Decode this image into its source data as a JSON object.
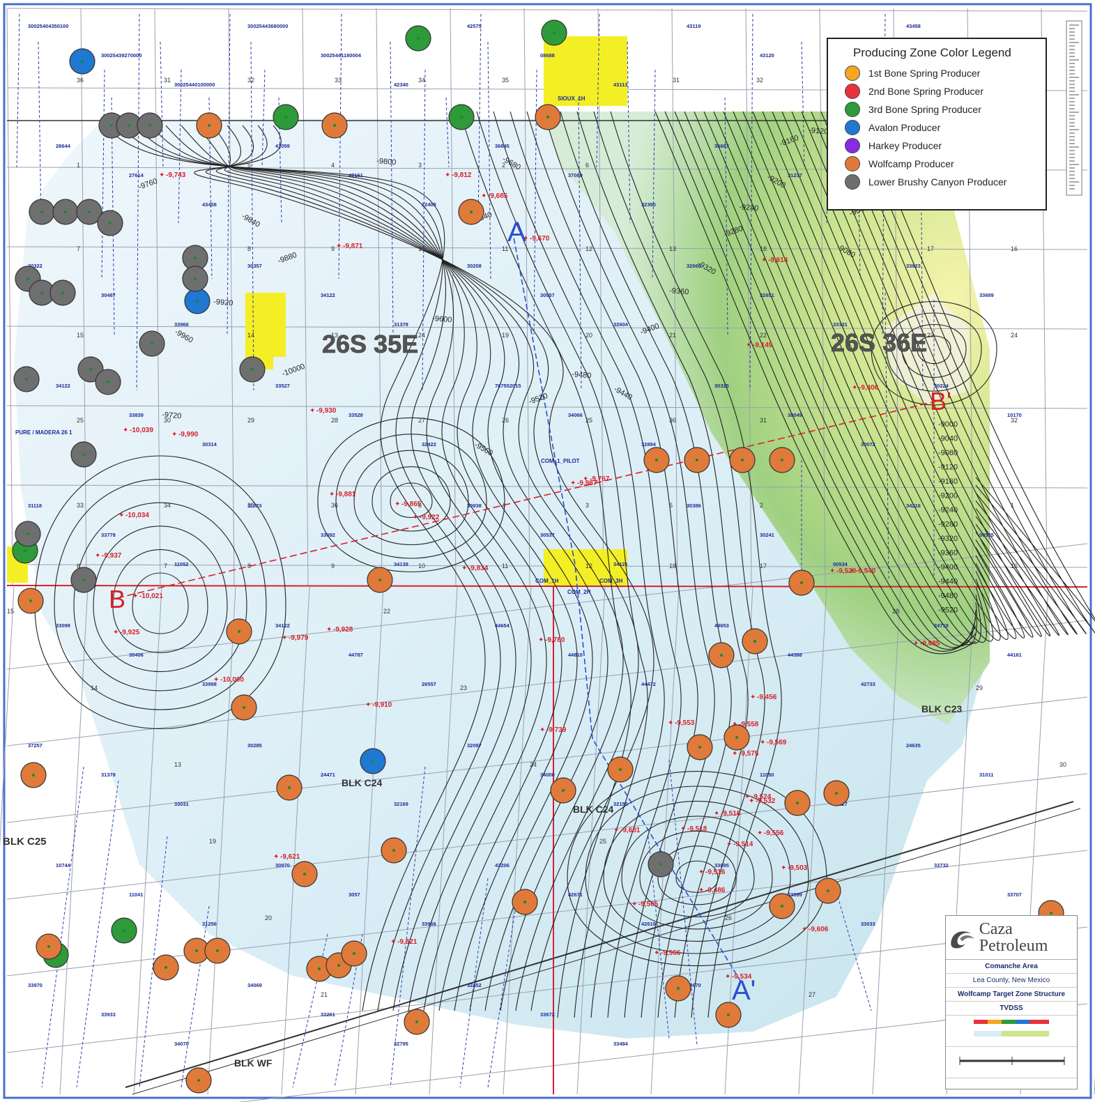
{
  "colors": {
    "contour": "#222222",
    "section_line": "#9aa0b0",
    "well_label": "#1b2a9a",
    "value_label": "#d8202a",
    "township_line": "#d8202a",
    "yellow_block": "#f4ef25",
    "map_border": "#4a6fcf"
  },
  "legend": {
    "title": "Producing Zone Color Legend",
    "items": [
      {
        "label": "1st Bone Spring Producer",
        "color": "#f5a623"
      },
      {
        "label": "2nd Bone Spring Producer",
        "color": "#e8323c"
      },
      {
        "label": "3rd Bone Spring Producer",
        "color": "#2e9a3a"
      },
      {
        "label": "Avalon Producer",
        "color": "#1f78d1"
      },
      {
        "label": "Harkey Producer",
        "color": "#8a2be2"
      },
      {
        "label": "Wolfcamp Producer",
        "color": "#e07a3a"
      },
      {
        "label": "Lower Brushy Canyon Producer",
        "color": "#6f6f6f"
      }
    ]
  },
  "township_labels": [
    "26S 35E",
    "26S 36E"
  ],
  "block_labels": [
    "BLK C25",
    "BLK C24",
    "BLK C24",
    "BLK C23",
    "BLK WF"
  ],
  "cross_section_labels": [
    "A",
    "A'",
    "B",
    "B'"
  ],
  "contour_labels": [
    "-9760",
    "-9800",
    "-9840",
    "-9880",
    "-9920",
    "-9960",
    "-10000",
    "-9720",
    "-9680",
    "-9640",
    "-9600",
    "-9560",
    "-9520",
    "-9480",
    "-9440",
    "-9400",
    "-9360",
    "-9320",
    "-9280",
    "-9240",
    "-9200",
    "-9160",
    "-9120",
    "-9080",
    "-9040",
    "-9000"
  ],
  "right_scale_labels": [
    "-9000",
    "-9040",
    "-9080",
    "-9120",
    "-9160",
    "-9200",
    "-9240",
    "-9280",
    "-9320",
    "-9360",
    "-9400",
    "-9440",
    "-9480",
    "-9520"
  ],
  "value_labels": [
    "-9,743",
    "-9,812",
    "-9,685",
    "-9,670",
    "-9,871",
    "-10,039",
    "-9,990",
    "-9,930",
    "-9,881",
    "-9,865",
    "-9,922",
    "-9,767",
    "-10,034",
    "-9,937",
    "-10,021",
    "-9,925",
    "-9,979",
    "-9,928",
    "-10,000",
    "-9,910",
    "-9,834",
    "-9,780",
    "-9,739",
    "-9,456",
    "-9,553",
    "-9,558",
    "-9,569",
    "-9,575",
    "-9,524",
    "-9,532",
    "-9,516",
    "-9,518",
    "-9,514",
    "-9,556",
    "-9,503",
    "-9,516",
    "-9,486",
    "-9,505",
    "-9,566",
    "-9,534",
    "-9,520",
    "-9,621",
    "-9,821",
    "-9,685",
    "-9,540",
    "-9,614",
    "-9,149",
    "-9,406",
    "-9,987",
    "-9,606",
    "-9,681"
  ],
  "well_labels": [
    "30025404350100",
    "30025439270000",
    "30025440100000",
    "30025443680000",
    "30025441180004",
    "42340",
    "42575",
    "08688",
    "43113",
    "43119",
    "43120",
    "43122",
    "43458",
    "27359",
    "28644",
    "27614",
    "43458",
    "41059",
    "42161",
    "22405",
    "36645",
    "37080",
    "32390",
    "36687",
    "31237",
    "30678",
    "32788",
    "30289",
    "30322",
    "30487",
    "33966",
    "30357",
    "34122",
    "31378",
    "30208",
    "30957",
    "32604",
    "32668",
    "32651",
    "33331",
    "33823",
    "33689",
    "34122",
    "33839",
    "30314",
    "33527",
    "33528",
    "32422",
    "787552015",
    "34066",
    "32894",
    "30325",
    "30049",
    "30072",
    "30224",
    "10170",
    "31118",
    "33778",
    "11052",
    "11023",
    "33092",
    "34139",
    "30938",
    "30537",
    "34121",
    "30386",
    "30241",
    "00534",
    "34216",
    "00535",
    "33099",
    "30406",
    "33998",
    "34122",
    "44787",
    "26557",
    "44654",
    "44810",
    "44472",
    "44653",
    "44388",
    "42733",
    "24718",
    "44161",
    "37257",
    "31378",
    "33031",
    "30285",
    "24471",
    "32169",
    "32097",
    "34000",
    "32155",
    "33942",
    "11050",
    "30127",
    "24635",
    "31011",
    "10744",
    "11041",
    "31256",
    "30970",
    "3057",
    "33966",
    "43206",
    "42671",
    "42619",
    "33895",
    "33899",
    "33033",
    "33732",
    "33707",
    "33970",
    "33933",
    "34070",
    "34069",
    "33261",
    "32795",
    "32452",
    "33672",
    "33484",
    "33670"
  ],
  "section_numbers": [
    "36",
    "31",
    "32",
    "33",
    "34",
    "35",
    "31",
    "32",
    "1",
    "5",
    "4",
    "3",
    "2",
    "6",
    "12",
    "7",
    "8",
    "9",
    "10",
    "11",
    "12",
    "13",
    "18",
    "17",
    "16",
    "15",
    "14",
    "13",
    "24",
    "19",
    "20",
    "21",
    "22",
    "23",
    "24",
    "25",
    "30",
    "29",
    "28",
    "27",
    "26",
    "25",
    "36",
    "31",
    "32",
    "33",
    "34",
    "35",
    "36",
    "5",
    "4",
    "3",
    "6",
    "2",
    "1",
    "6",
    "7",
    "8",
    "9",
    "10",
    "11",
    "12",
    "18",
    "17",
    "16",
    "15",
    "14",
    "13",
    "19",
    "20",
    "21",
    "22",
    "23",
    "24",
    "25",
    "26",
    "27",
    "28",
    "29",
    "30"
  ],
  "map_labels": {
    "pure_madera": "PURE / MADERA 26 1",
    "com_pilot": "COM_1_PILOT",
    "com_1h": "COM_1H",
    "com_2h": "COM_2H",
    "com_3h": "COM_3H",
    "sioux": "SIOUX_1H"
  },
  "title_block": {
    "company": "Caza Petroleum",
    "area": "Comanche Area",
    "county": "Lea County, New Mexico",
    "map_title": "Wolfcamp Target Zone Structure",
    "units": "TVDSS"
  }
}
